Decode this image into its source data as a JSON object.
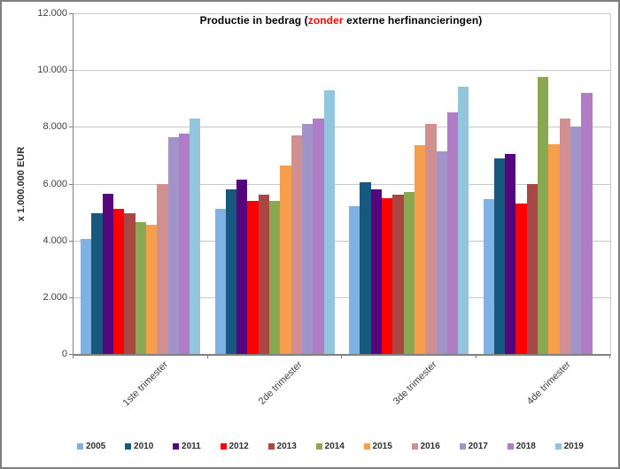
{
  "title": {
    "prefix": "Productie in bedrag (",
    "highlight": "zonder",
    "suffix": " externe herfinancieringen)",
    "highlight_color": "#ff0000"
  },
  "y_axis": {
    "label": "x 1.000.000  EUR",
    "ticks": [
      "12.000",
      "10.000",
      "8.000",
      "6.000",
      "4.000",
      "2.000",
      "0"
    ],
    "min": 0,
    "max": 12000,
    "step": 2000
  },
  "colors": {
    "gridline": "#c8c8c8",
    "axis": "#808080",
    "title_highlight": "#ff0000"
  },
  "chart_data": {
    "type": "bar",
    "title": "Productie in bedrag (zonder externe herfinancieringen)",
    "ylabel": "x 1.000.000  EUR",
    "ylim": [
      0,
      12000
    ],
    "grid": true,
    "legend_position": "bottom",
    "categories": [
      "1ste trimester",
      "2de trimester",
      "3de trimester",
      "4de trimester"
    ],
    "series": [
      {
        "name": "2005",
        "color": "#7fb2e4",
        "values": [
          4050,
          5100,
          5200,
          5450
        ]
      },
      {
        "name": "2010",
        "color": "#16587e",
        "values": [
          4950,
          5800,
          6050,
          6900
        ]
      },
      {
        "name": "2011",
        "color": "#55067d",
        "values": [
          5650,
          6150,
          5800,
          7050
        ]
      },
      {
        "name": "2012",
        "color": "#fe0000",
        "values": [
          5100,
          5400,
          5500,
          5300
        ]
      },
      {
        "name": "2013",
        "color": "#a84743",
        "values": [
          4950,
          5600,
          5600,
          6000
        ]
      },
      {
        "name": "2014",
        "color": "#8aa751",
        "values": [
          4650,
          5400,
          5700,
          9750
        ]
      },
      {
        "name": "2015",
        "color": "#f79e4c",
        "values": [
          4550,
          6650,
          7350,
          7400
        ]
      },
      {
        "name": "2016",
        "color": "#d28f8f",
        "values": [
          6000,
          7700,
          8100,
          8300
        ]
      },
      {
        "name": "2017",
        "color": "#a294c9",
        "values": [
          7650,
          8100,
          7150,
          8000
        ]
      },
      {
        "name": "2018",
        "color": "#af7dc6",
        "values": [
          7750,
          8300,
          8500,
          9200
        ]
      },
      {
        "name": "2019",
        "color": "#93c6dc",
        "values": [
          8300,
          9300,
          9400,
          null
        ]
      }
    ]
  }
}
